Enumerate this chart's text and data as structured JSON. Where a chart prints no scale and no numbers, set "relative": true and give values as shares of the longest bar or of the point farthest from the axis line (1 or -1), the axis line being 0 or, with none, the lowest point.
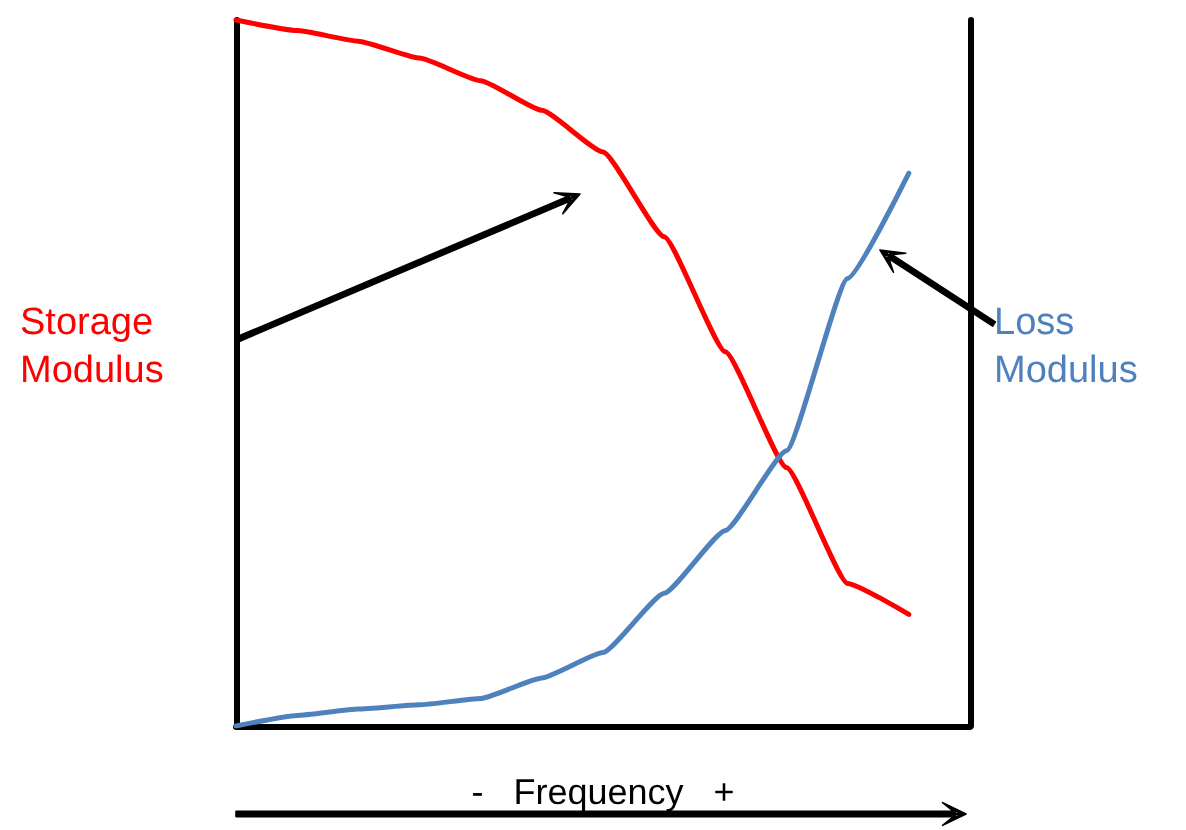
{
  "chart_data": {
    "type": "line",
    "relative": true,
    "xlabel": "-   Frequency   +",
    "categories": [
      null,
      null,
      null,
      null,
      null,
      null,
      null,
      null,
      null,
      null,
      null,
      null,
      null
    ],
    "series": [
      {
        "name": "Storage Modulus",
        "color": "#ff0000",
        "values": [
          1,
          0.985,
          0.97,
          0.946,
          0.914,
          0.872,
          0.813,
          0.693,
          0.53,
          0.366,
          0.202,
          0.158,
          null
        ]
      },
      {
        "name": "Loss Modulus",
        "color": "#4f81bd",
        "values": [
          0,
          0.015,
          0.024,
          0.03,
          0.039,
          0.068,
          0.104,
          0.188,
          0.277,
          0.39,
          0.634,
          0.783,
          null
        ]
      }
    ]
  }
}
